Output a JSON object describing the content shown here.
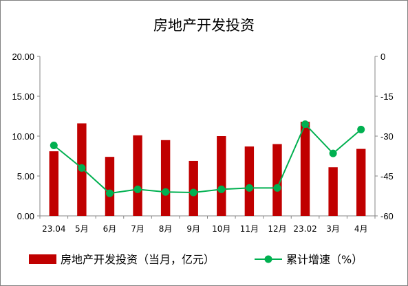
{
  "chart_data": {
    "type": "bar",
    "title": "房地产开发投资",
    "categories": [
      "23.04",
      "5月",
      "6月",
      "7月",
      "8月",
      "9月",
      "10月",
      "11月",
      "12月",
      "23.02",
      "3月",
      "4月"
    ],
    "series": [
      {
        "name": "房地产开发投资（当月，亿元）",
        "type": "bar",
        "axis": "left",
        "color": "#C00000",
        "values": [
          8.1,
          11.6,
          7.4,
          10.1,
          9.5,
          6.9,
          10.0,
          8.7,
          9.0,
          11.8,
          6.1,
          8.4
        ]
      },
      {
        "name": "累计增速（%）",
        "type": "line",
        "axis": "right",
        "color": "#00B050",
        "values": [
          -33.5,
          -42.0,
          -51.5,
          -50.0,
          -51.0,
          -51.2,
          -50.0,
          -49.5,
          -49.5,
          -25.5,
          -36.5,
          -27.5
        ]
      }
    ],
    "y_left": {
      "lim": [
        0,
        20
      ],
      "ticks": [
        "0.00",
        "5.00",
        "10.00",
        "15.00",
        "20.00"
      ],
      "tick_values": [
        0,
        5,
        10,
        15,
        20
      ]
    },
    "y_right": {
      "lim": [
        -60,
        0
      ],
      "ticks": [
        "-60",
        "-45",
        "-30",
        "-15",
        "0"
      ],
      "tick_values": [
        -60,
        -45,
        -30,
        -15,
        0
      ]
    },
    "legend_position": "bottom",
    "grid": false
  }
}
